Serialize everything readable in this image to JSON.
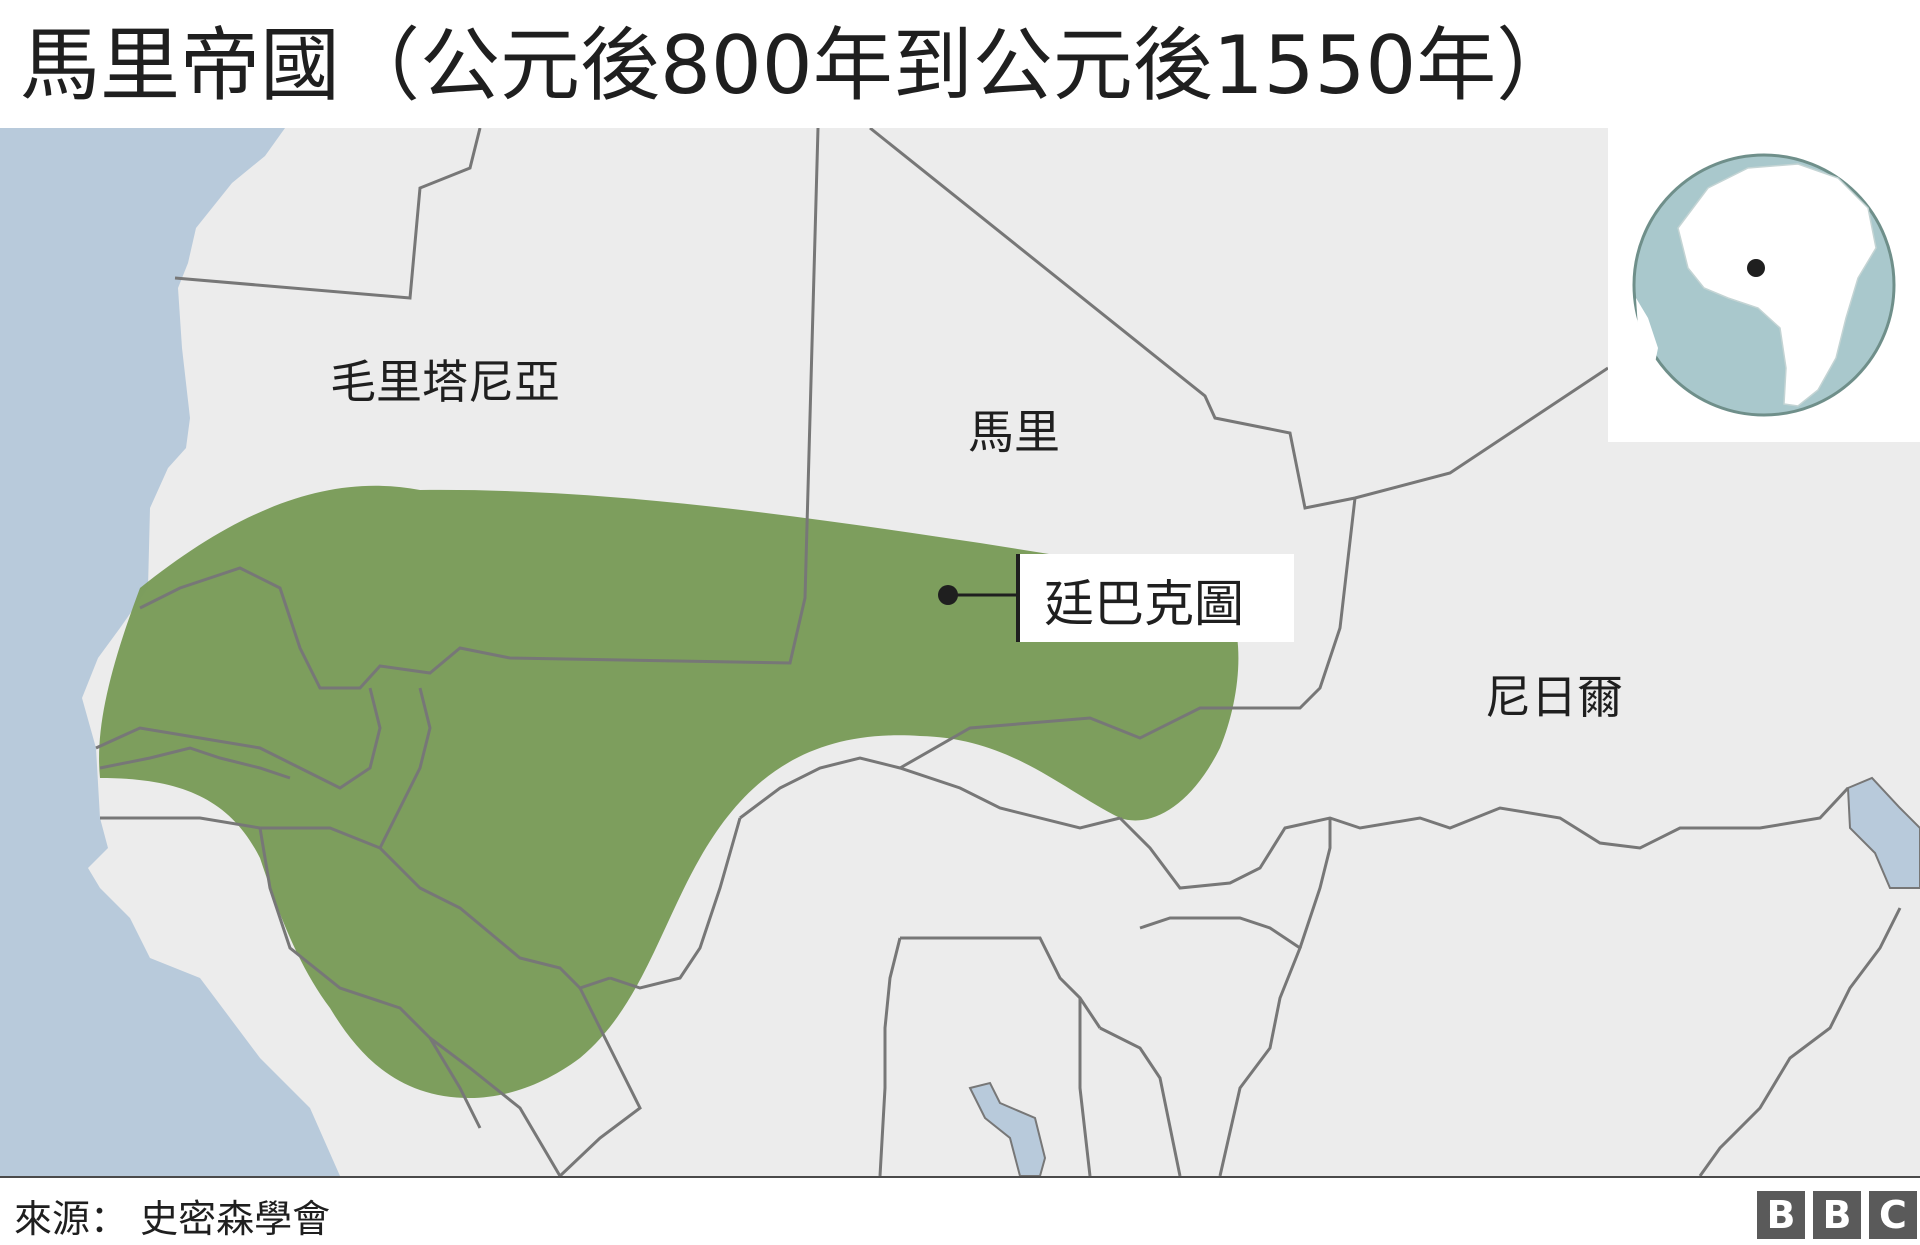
{
  "title": "馬里帝國（公元後800年到公元後1550年）",
  "labels": {
    "mauritania": "毛里塔尼亞",
    "mali": "馬里",
    "niger": "尼日爾",
    "timbuktu": "廷巴克圖"
  },
  "source": "來源：  史密森學會",
  "logo": [
    "B",
    "B",
    "C"
  ],
  "colors": {
    "ocean": "#b8cadb",
    "land": "#ececec",
    "border": "#777777",
    "empire": "#7a9c5a",
    "globe_ocean": "#a9c8cc",
    "logo_bg": "#5a5a5a"
  },
  "icons": {
    "city_marker": "dot-icon",
    "locator": "globe-icon"
  }
}
